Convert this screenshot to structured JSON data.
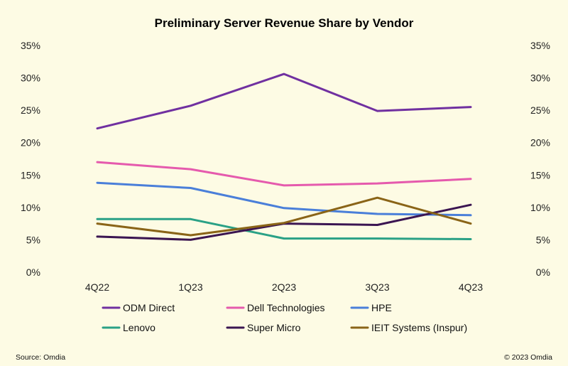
{
  "chart_data": {
    "type": "line",
    "title": "Preliminary Server Revenue Share by Vendor",
    "xlabel": "",
    "ylabel": "",
    "categories": [
      "4Q22",
      "1Q23",
      "2Q23",
      "3Q23",
      "4Q23"
    ],
    "y_ticks": [
      "0%",
      "5%",
      "10%",
      "15%",
      "20%",
      "25%",
      "30%",
      "35%"
    ],
    "ylim": [
      0,
      35
    ],
    "y_tick_step": 5,
    "y_axis_both_sides": true,
    "grid": false,
    "legend_position": "bottom",
    "series": [
      {
        "name": "ODM Direct",
        "color": "#7030a0",
        "values": [
          22.2,
          25.7,
          30.6,
          24.9,
          25.5
        ]
      },
      {
        "name": "Dell Technologies",
        "color": "#e55aad",
        "values": [
          17.0,
          15.9,
          13.4,
          13.7,
          14.4
        ]
      },
      {
        "name": "HPE",
        "color": "#4a7fd9",
        "values": [
          13.8,
          13.0,
          9.9,
          9.0,
          8.8
        ]
      },
      {
        "name": "Lenovo",
        "color": "#2aa186",
        "values": [
          8.2,
          8.2,
          5.2,
          5.2,
          5.1
        ]
      },
      {
        "name": "Super Micro",
        "color": "#3b1551",
        "values": [
          5.5,
          5.0,
          7.5,
          7.3,
          10.4
        ]
      },
      {
        "name": "IEIT Systems (Inspur)",
        "color": "#8a6417",
        "values": [
          7.5,
          5.7,
          7.6,
          11.5,
          7.5
        ]
      }
    ]
  },
  "footer": {
    "source": "Source: Omdia",
    "copyright": "© 2023 Omdia"
  }
}
